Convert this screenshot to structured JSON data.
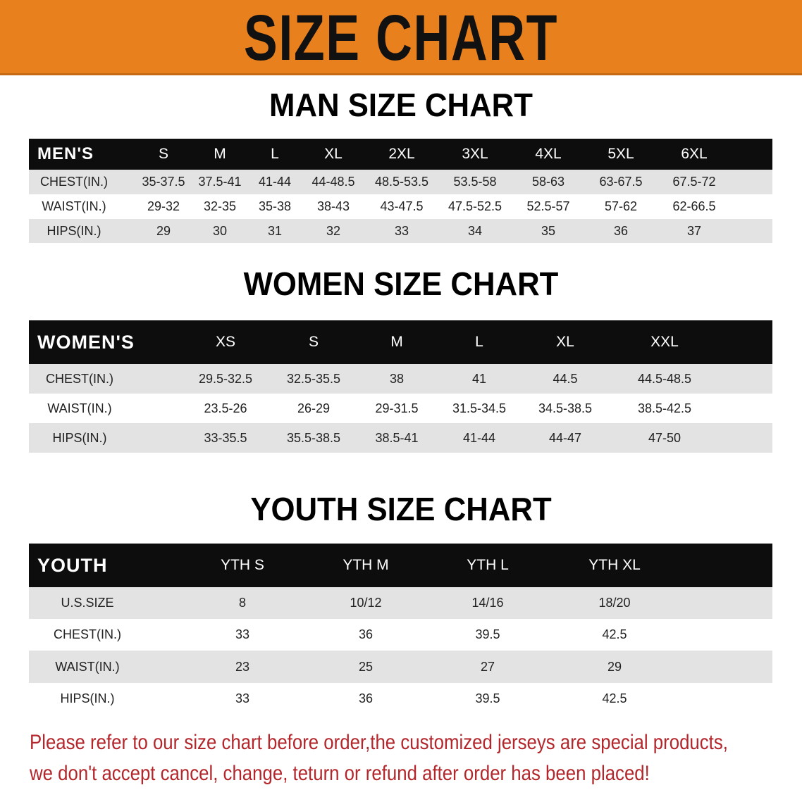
{
  "banner": {
    "title": "SIZE CHART",
    "color": "#e8801e"
  },
  "men": {
    "title": "MAN SIZE CHART",
    "header": [
      "MEN'S",
      "S",
      "M",
      "L",
      "XL",
      "2XL",
      "3XL",
      "4XL",
      "5XL",
      "6XL"
    ],
    "rows": [
      [
        "CHEST(IN.)",
        "35-37.5",
        "37.5-41",
        "41-44",
        "44-48.5",
        "48.5-53.5",
        "53.5-58",
        "58-63",
        "63-67.5",
        "67.5-72"
      ],
      [
        "WAIST(IN.)",
        "29-32",
        "32-35",
        "35-38",
        "38-43",
        "43-47.5",
        "47.5-52.5",
        "52.5-57",
        "57-62",
        "62-66.5"
      ],
      [
        "HIPS(IN.)",
        "29",
        "30",
        "31",
        "32",
        "33",
        "34",
        "35",
        "36",
        "37"
      ]
    ]
  },
  "women": {
    "title": "WOMEN SIZE CHART",
    "header": [
      "WOMEN'S",
      "XS",
      "S",
      "M",
      "L",
      "XL",
      "XXL"
    ],
    "rows": [
      [
        "CHEST(IN.)",
        "29.5-32.5",
        "32.5-35.5",
        "38",
        "41",
        "44.5",
        "44.5-48.5"
      ],
      [
        "WAIST(IN.)",
        "23.5-26",
        "26-29",
        "29-31.5",
        "31.5-34.5",
        "34.5-38.5",
        "38.5-42.5"
      ],
      [
        "HIPS(IN.)",
        "33-35.5",
        "35.5-38.5",
        "38.5-41",
        "41-44",
        "44-47",
        "47-50"
      ]
    ]
  },
  "youth": {
    "title": "YOUTH SIZE CHART",
    "header": [
      "YOUTH",
      "YTH S",
      "YTH M",
      "YTH L",
      "YTH XL"
    ],
    "rows": [
      [
        "U.S.SIZE",
        "8",
        "10/12",
        "14/16",
        "18/20"
      ],
      [
        "CHEST(IN.)",
        "33",
        "36",
        "39.5",
        "42.5"
      ],
      [
        "WAIST(IN.)",
        "23",
        "25",
        "27",
        "29"
      ],
      [
        "HIPS(IN.)",
        "33",
        "36",
        "39.5",
        "42.5"
      ]
    ]
  },
  "footer": {
    "line1": "Please refer to our size chart before order,the customized jerseys are special products,",
    "line2": "we don't accept cancel, change, teturn or refund after order has been placed!",
    "color": "#b3262b"
  }
}
